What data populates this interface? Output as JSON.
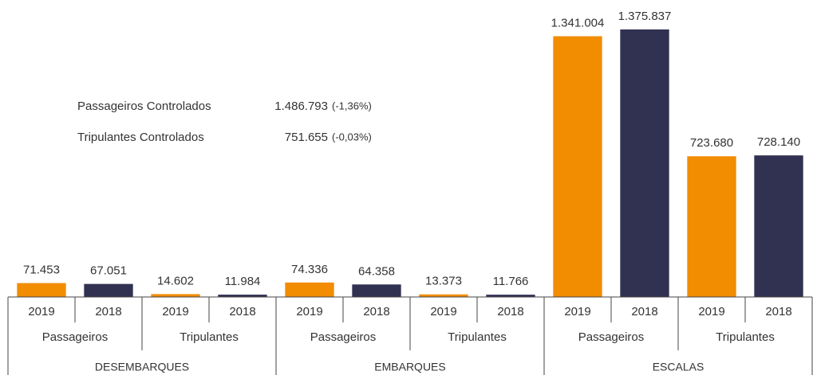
{
  "chart_data": {
    "type": "bar",
    "groups": [
      "DESEMBARQUES",
      "EMBARQUES",
      "ESCALAS"
    ],
    "categories": [
      "Passageiros",
      "Tripulantes",
      "Passageiros",
      "Tripulantes",
      "Passageiros",
      "Tripulantes"
    ],
    "series": [
      {
        "name": "2019",
        "color": "#f28c00",
        "values": [
          71453,
          14602,
          74336,
          13373,
          1341004,
          723680
        ],
        "value_labels": [
          "71.453",
          "14.602",
          "74.336",
          "13.373",
          "1.341.004",
          "723.680"
        ]
      },
      {
        "name": "2018",
        "color": "#313152",
        "values": [
          67051,
          11984,
          64358,
          11766,
          1375837,
          728140
        ],
        "value_labels": [
          "67.051",
          "11.984",
          "64.358",
          "11.766",
          "1.375.837",
          "728.140"
        ]
      }
    ],
    "annotations": [
      {
        "label": "Passageiros Controlados",
        "value": "1.486.793",
        "change": "(-1,36%)"
      },
      {
        "label": "Tripulantes Controlados",
        "value": "751.655",
        "change": "(-0,03%)"
      }
    ]
  }
}
